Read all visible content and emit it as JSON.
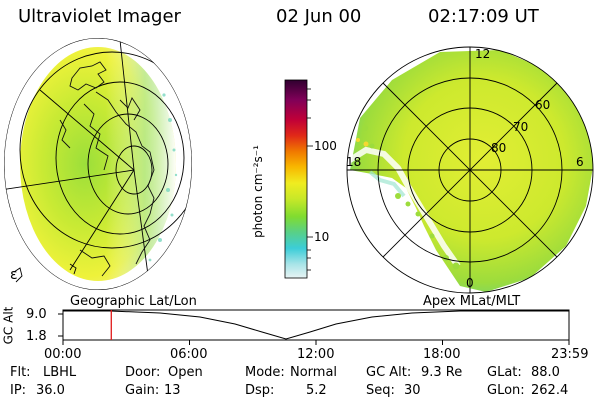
{
  "header": {
    "instrument": "Ultraviolet Imager",
    "date": "02 Jun 00",
    "time": "02:17:09 UT"
  },
  "left_panel": {
    "caption": "Geographic Lat/Lon",
    "corner_glyph": "ɛ"
  },
  "right_panel": {
    "caption": "Apex MLat/MLT",
    "mlt_labels": {
      "top": "12",
      "left": "18",
      "right": "6",
      "bottom": "0"
    },
    "lat_labels": [
      "60",
      "70",
      "80"
    ]
  },
  "colorbar": {
    "unit_label": "photon cm⁻²s⁻¹",
    "tick_labels": [
      "100",
      "10"
    ],
    "colors": [
      "#e8f4f4",
      "#a8e4e8",
      "#3ccdd8",
      "#58d088",
      "#80dc30",
      "#c8e828",
      "#f0ec20",
      "#f8b800",
      "#f07800",
      "#e02818",
      "#c00038",
      "#800058",
      "#300030"
    ]
  },
  "timeline": {
    "y_axis_label": "GC Alt",
    "y_ticks": [
      "9.0",
      "1.8"
    ],
    "x_ticks": [
      "00:00",
      "06:00",
      "12:00",
      "18:00",
      "23:59"
    ],
    "cursor_hour": 2.29
  },
  "info": {
    "row1": [
      {
        "label": "Flt:",
        "value": "LBHL"
      },
      {
        "label": "Door:",
        "value": "Open"
      },
      {
        "label": "Mode:",
        "value": "Normal"
      },
      {
        "label": "GC Alt:",
        "value": "9.3 Re"
      },
      {
        "label": "GLat:",
        "value": "88.0"
      }
    ],
    "row2": [
      {
        "label": "IP:",
        "value": "36.0"
      },
      {
        "label": "Gain:",
        "value": "13"
      },
      {
        "label": "Dsp:",
        "value": "5.2"
      },
      {
        "label": "Seq:",
        "value": "30"
      },
      {
        "label": "GLon:",
        "value": "262.4"
      }
    ]
  }
}
